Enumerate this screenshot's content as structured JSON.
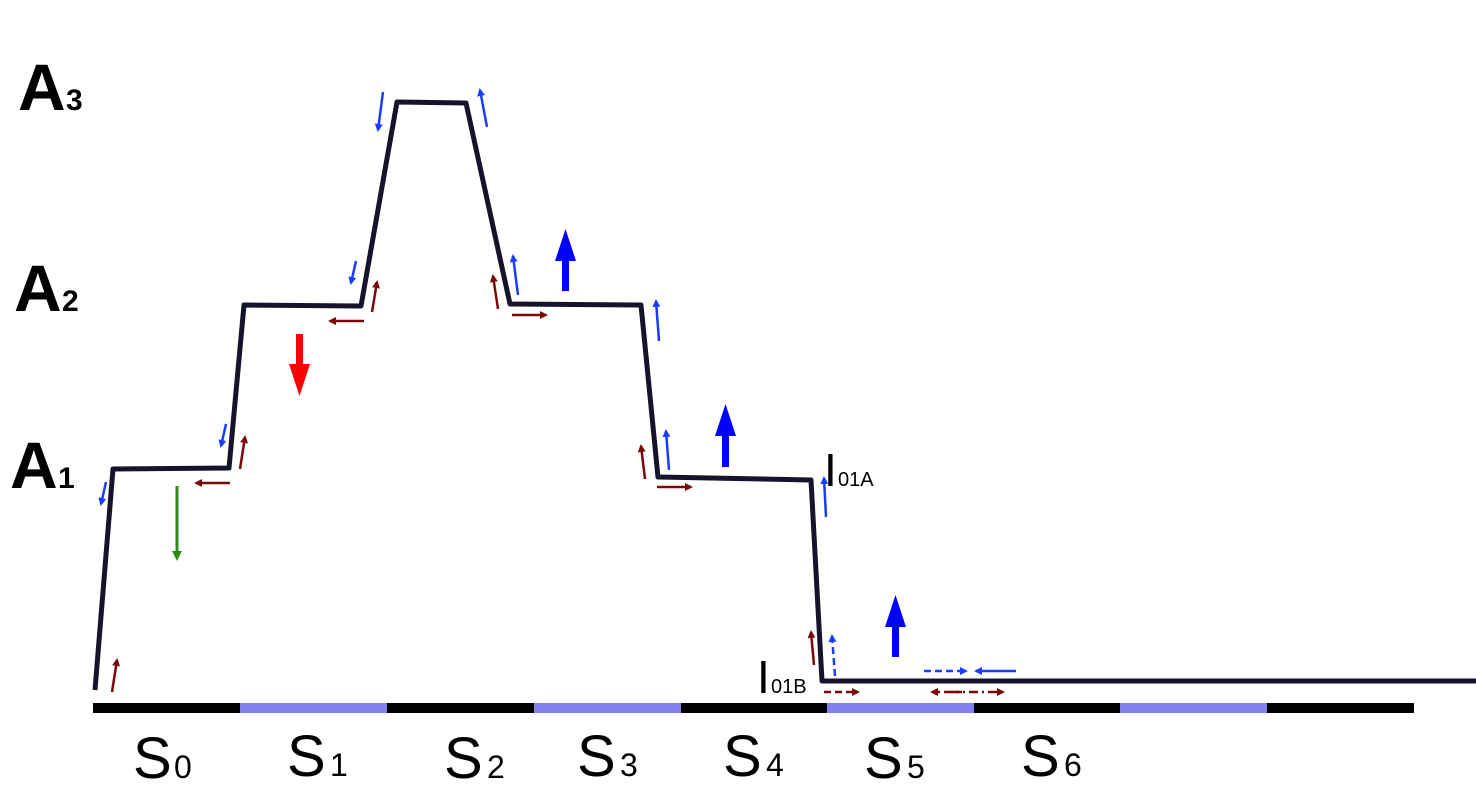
{
  "levels": [
    {
      "letter": "A",
      "sub": "3"
    },
    {
      "letter": "A",
      "sub": "2"
    },
    {
      "letter": "A",
      "sub": "1"
    }
  ],
  "segments": [
    {
      "letter": "S",
      "sub": "0"
    },
    {
      "letter": "S",
      "sub": "1"
    },
    {
      "letter": "S",
      "sub": "2"
    },
    {
      "letter": "S",
      "sub": "3"
    },
    {
      "letter": "S",
      "sub": "4"
    },
    {
      "letter": "S",
      "sub": "5"
    },
    {
      "letter": "S",
      "sub": "6"
    }
  ],
  "intermediates": [
    {
      "letter": "I",
      "sub": "01A"
    },
    {
      "letter": "I",
      "sub": "01B"
    }
  ],
  "colors": {
    "profile": "#14142a",
    "timeline_dark": "#000000",
    "timeline_light": "#8080f0",
    "arrow_blue": "#1a3cff",
    "arrow_maroon": "#7a0a0a",
    "arrow_red": "#ff0000",
    "arrow_green": "#2e8b1a",
    "arrow_bold_blue": "#0000ff"
  }
}
